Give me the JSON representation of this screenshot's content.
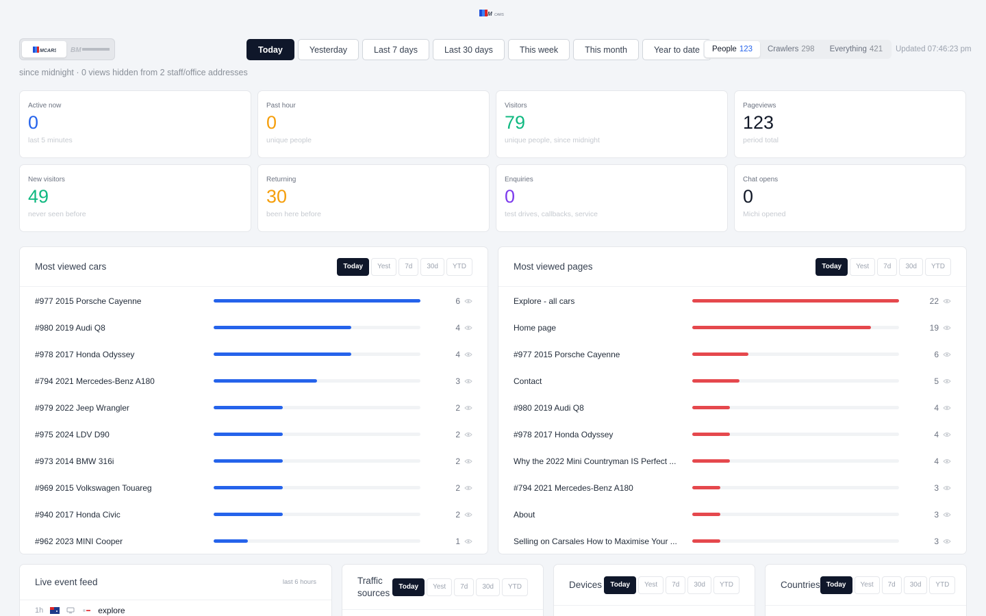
{
  "subtitle": "since midnight · 0 views hidden from 2 staff/office addresses",
  "range_tabs": [
    "Today",
    "Yesterday",
    "Last 7 days",
    "Last 30 days",
    "This week",
    "This month",
    "Year to date"
  ],
  "audience": [
    {
      "label": "People",
      "count": "123"
    },
    {
      "label": "Crawlers",
      "count": "298"
    },
    {
      "label": "Everything",
      "count": "421"
    }
  ],
  "updated": "Updated 07:46:23 pm",
  "stats": [
    {
      "label": "Active now",
      "value": "0",
      "note": "last 5 minutes",
      "color": "#2563eb"
    },
    {
      "label": "Past hour",
      "value": "0",
      "note": "unique people",
      "color": "#f59e0b"
    },
    {
      "label": "Visitors",
      "value": "79",
      "note": "unique people, since midnight",
      "color": "#10b981"
    },
    {
      "label": "Pageviews",
      "value": "123",
      "note": "period total",
      "color": "#111827"
    },
    {
      "label": "New visitors",
      "value": "49",
      "note": "never seen before",
      "color": "#10b981"
    },
    {
      "label": "Returning",
      "value": "30",
      "note": "been here before",
      "color": "#f59e0b"
    },
    {
      "label": "Enquiries",
      "value": "0",
      "note": "test drives, callbacks, service",
      "color": "#7c3aed"
    },
    {
      "label": "Chat opens",
      "value": "0",
      "note": "Michi opened",
      "color": "#111827"
    }
  ],
  "mini_tabs": [
    "Today",
    "Yest",
    "7d",
    "30d",
    "YTD"
  ],
  "cars": {
    "title": "Most viewed cars",
    "color": "#2563eb",
    "max": 6,
    "rows": [
      {
        "label": "#977 2015 Porsche Cayenne",
        "count": 6
      },
      {
        "label": "#980 2019 Audi Q8",
        "count": 4
      },
      {
        "label": "#978 2017 Honda Odyssey",
        "count": 4
      },
      {
        "label": "#794 2021 Mercedes-Benz A180",
        "count": 3
      },
      {
        "label": "#979 2022 Jeep Wrangler",
        "count": 2
      },
      {
        "label": "#975 2024 LDV D90",
        "count": 2
      },
      {
        "label": "#973 2014 BMW 316i",
        "count": 2
      },
      {
        "label": "#969 2015 Volkswagen Touareg",
        "count": 2
      },
      {
        "label": "#940 2017 Honda Civic",
        "count": 2
      },
      {
        "label": "#962 2023 MINI Cooper",
        "count": 1
      }
    ]
  },
  "pages": {
    "title": "Most viewed pages",
    "color": "#e5484d",
    "max": 22,
    "rows": [
      {
        "label": "Explore - all cars",
        "count": 22
      },
      {
        "label": "Home page",
        "count": 19
      },
      {
        "label": "#977 2015 Porsche Cayenne",
        "count": 6
      },
      {
        "label": "Contact",
        "count": 5
      },
      {
        "label": "#980 2019 Audi Q8",
        "count": 4
      },
      {
        "label": "#978 2017 Honda Odyssey",
        "count": 4
      },
      {
        "label": "Why the 2022 Mini Countryman IS Perfect ...",
        "count": 4
      },
      {
        "label": "#794 2021 Mercedes-Benz A180",
        "count": 3
      },
      {
        "label": "About",
        "count": 3
      },
      {
        "label": "Selling on Carsales How to Maximise Your ...",
        "count": 3
      }
    ]
  },
  "feed": {
    "title": "Live event feed",
    "meta": "last 6 hours",
    "first_time": "1h",
    "first_event": "explore"
  },
  "traffic": {
    "title": "Traffic sources"
  },
  "devices": {
    "title": "Devices"
  },
  "countries": {
    "title": "Countries"
  }
}
